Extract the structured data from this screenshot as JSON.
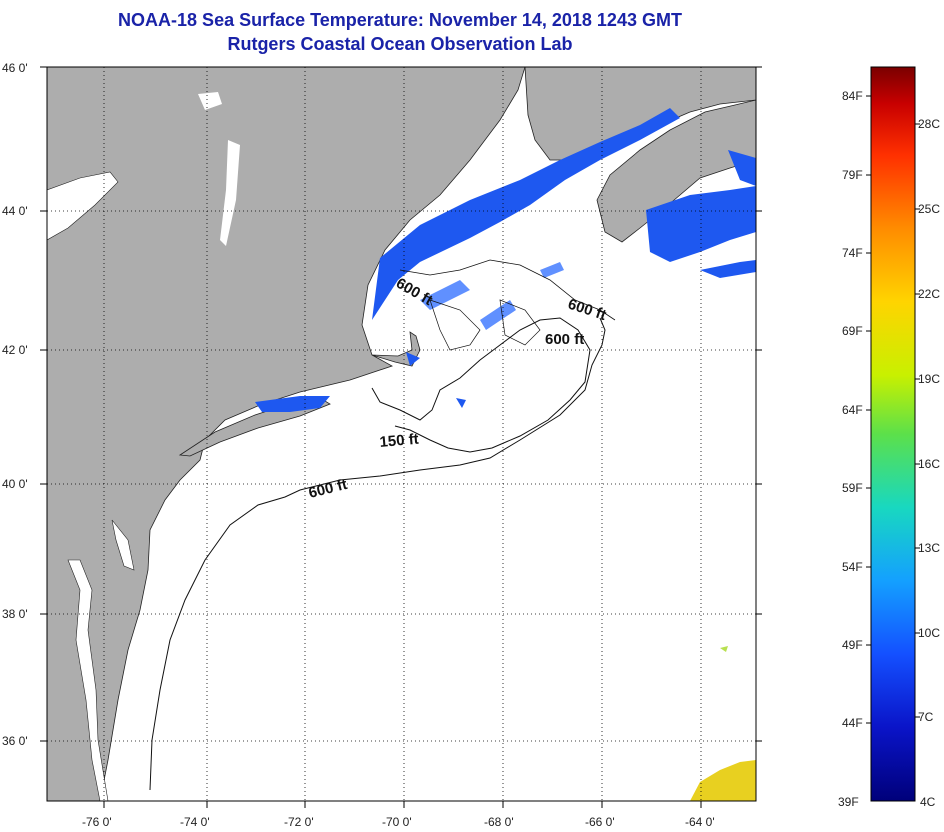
{
  "title": "NOAA-18 Sea Surface Temperature:  November 14, 2018 1243 GMT",
  "subtitle": "Rutgers Coastal Ocean Observation Lab",
  "lat_labels": [
    "46 0'",
    "44 0'",
    "42 0'",
    "40 0'",
    "38 0'",
    "36 0'"
  ],
  "lon_labels": [
    "-76 0'",
    "-74 0'",
    "-72 0'",
    "-70 0'",
    "-68 0'",
    "-66 0'",
    "-64 0'"
  ],
  "contours": [
    "600 ft",
    "600 ft",
    "600 ft",
    "150 ft",
    "600 ft"
  ],
  "colorbar": {
    "fahrenheit": [
      "84F",
      "79F",
      "74F",
      "69F",
      "64F",
      "59F",
      "54F",
      "49F",
      "44F",
      "39F"
    ],
    "celsius": [
      "28C",
      "25C",
      "22C",
      "19C",
      "16C",
      "13C",
      "10C",
      "7C",
      "4C"
    ],
    "colors": [
      "#7a0000",
      "#c80000",
      "#ff3000",
      "#ff8c00",
      "#ffd400",
      "#c8f000",
      "#5ce04a",
      "#18d8c0",
      "#14a0ff",
      "#1450ff",
      "#0a14c8",
      "#00007a"
    ]
  },
  "colors": {
    "land": "#adadad",
    "ocean": "#ffffff",
    "cold_sst": "#1e58f0",
    "title": "#1a23a8"
  }
}
